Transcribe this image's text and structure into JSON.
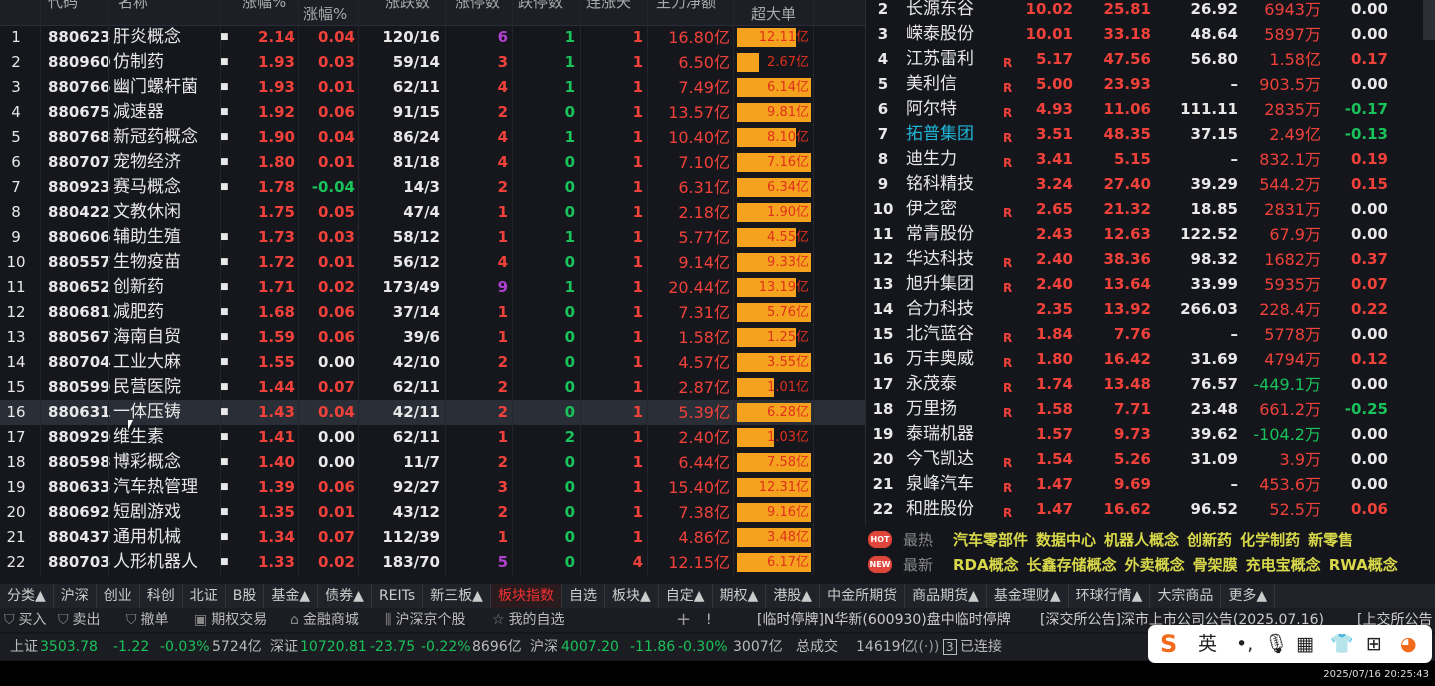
{
  "left_table": {
    "headers": {
      "code": "代码",
      "name": "名称",
      "change_top": "涨幅%",
      "change2": "涨幅%",
      "updown": "涨跌数",
      "limit_up": "涨停数",
      "limit_down": "跌停数",
      "streak": "连涨天",
      "main_net": "主力净额",
      "super_large": "超大单"
    },
    "rows": [
      {
        "i": "1",
        "code": "880623",
        "name": "肝炎概念",
        "dot": true,
        "chg": "2.14",
        "chg2": "0.04",
        "ud": "120/16",
        "lu": "6",
        "ld": "1",
        "st": "1",
        "net": "16.80亿",
        "sup": "12.11亿",
        "fill": 0.8
      },
      {
        "i": "2",
        "code": "880960",
        "name": "仿制药",
        "dot": true,
        "chg": "1.93",
        "chg2": "0.03",
        "ud": "59/14",
        "lu": "3",
        "ld": "1",
        "st": "1",
        "net": "6.50亿",
        "sup": "2.67亿",
        "fill": 0.3
      },
      {
        "i": "3",
        "code": "880766",
        "name": "幽门螺杆菌",
        "dot": true,
        "chg": "1.93",
        "chg2": "0.01",
        "ud": "62/11",
        "lu": "4",
        "ld": "1",
        "st": "1",
        "net": "7.49亿",
        "sup": "6.14亿",
        "fill": 1
      },
      {
        "i": "4",
        "code": "880675",
        "name": "减速器",
        "dot": true,
        "chg": "1.92",
        "chg2": "0.06",
        "ud": "91/15",
        "lu": "2",
        "ld": "0",
        "st": "1",
        "net": "13.57亿",
        "sup": "9.81亿",
        "fill": 1
      },
      {
        "i": "5",
        "code": "880768",
        "name": "新冠药概念",
        "dot": true,
        "chg": "1.90",
        "chg2": "0.04",
        "ud": "86/24",
        "lu": "4",
        "ld": "1",
        "st": "1",
        "net": "10.40亿",
        "sup": "8.10亿",
        "fill": 0.8
      },
      {
        "i": "6",
        "code": "880707",
        "name": "宠物经济",
        "dot": true,
        "chg": "1.80",
        "chg2": "0.01",
        "ud": "81/18",
        "lu": "4",
        "ld": "0",
        "st": "1",
        "net": "7.10亿",
        "sup": "7.16亿",
        "fill": 1
      },
      {
        "i": "7",
        "code": "880923",
        "name": "赛马概念",
        "dot": true,
        "chg": "1.78",
        "chg2": "-0.04",
        "ud": "14/3",
        "lu": "2",
        "ld": "0",
        "st": "1",
        "net": "6.31亿",
        "sup": "6.34亿",
        "fill": 1
      },
      {
        "i": "8",
        "code": "880422",
        "name": "文教休闲",
        "dot": false,
        "chg": "1.75",
        "chg2": "0.05",
        "ud": "47/4",
        "lu": "1",
        "ld": "0",
        "st": "1",
        "net": "2.18亿",
        "sup": "1.90亿",
        "fill": 1
      },
      {
        "i": "9",
        "code": "880606",
        "name": "辅助生殖",
        "dot": true,
        "chg": "1.73",
        "chg2": "0.03",
        "ud": "58/12",
        "lu": "1",
        "ld": "1",
        "st": "1",
        "net": "5.77亿",
        "sup": "4.55亿",
        "fill": 0.8
      },
      {
        "i": "10",
        "code": "880557",
        "name": "生物疫苗",
        "dot": true,
        "chg": "1.72",
        "chg2": "0.01",
        "ud": "56/12",
        "lu": "4",
        "ld": "0",
        "st": "1",
        "net": "9.14亿",
        "sup": "9.33亿",
        "fill": 1
      },
      {
        "i": "11",
        "code": "880652",
        "name": "创新药",
        "dot": true,
        "chg": "1.71",
        "chg2": "0.02",
        "ud": "173/49",
        "lu": "9",
        "ld": "1",
        "st": "1",
        "net": "20.44亿",
        "sup": "13.19亿",
        "fill": 0.8
      },
      {
        "i": "12",
        "code": "880681",
        "name": "减肥药",
        "dot": true,
        "chg": "1.68",
        "chg2": "0.06",
        "ud": "37/14",
        "lu": "1",
        "ld": "0",
        "st": "1",
        "net": "7.31亿",
        "sup": "5.76亿",
        "fill": 1
      },
      {
        "i": "13",
        "code": "880567",
        "name": "海南自贸",
        "dot": true,
        "chg": "1.59",
        "chg2": "0.06",
        "ud": "39/6",
        "lu": "1",
        "ld": "0",
        "st": "1",
        "net": "1.58亿",
        "sup": "1.25亿",
        "fill": 0.8
      },
      {
        "i": "14",
        "code": "880704",
        "name": "工业大麻",
        "dot": true,
        "chg": "1.55",
        "chg2": "0.00",
        "ud": "42/10",
        "lu": "2",
        "ld": "0",
        "st": "1",
        "net": "4.57亿",
        "sup": "3.55亿",
        "fill": 1
      },
      {
        "i": "15",
        "code": "880599",
        "name": "民营医院",
        "dot": true,
        "chg": "1.44",
        "chg2": "0.07",
        "ud": "62/11",
        "lu": "2",
        "ld": "0",
        "st": "1",
        "net": "2.87亿",
        "sup": "1.01亿",
        "fill": 0.5
      },
      {
        "i": "16",
        "code": "880631",
        "name": "一体压铸",
        "dot": true,
        "chg": "1.43",
        "chg2": "0.04",
        "ud": "42/11",
        "lu": "2",
        "ld": "0",
        "st": "1",
        "net": "5.39亿",
        "sup": "6.28亿",
        "fill": 1,
        "selected": true
      },
      {
        "i": "17",
        "code": "880929",
        "name": "维生素",
        "dot": true,
        "chg": "1.41",
        "chg2": "0.00",
        "ud": "62/11",
        "lu": "1",
        "ld": "2",
        "st": "1",
        "net": "2.40亿",
        "sup": "1.03亿",
        "fill": 0.5
      },
      {
        "i": "18",
        "code": "880598",
        "name": "博彩概念",
        "dot": true,
        "chg": "1.40",
        "chg2": "0.00",
        "ud": "11/7",
        "lu": "2",
        "ld": "0",
        "st": "1",
        "net": "6.44亿",
        "sup": "7.58亿",
        "fill": 1
      },
      {
        "i": "19",
        "code": "880633",
        "name": "汽车热管理",
        "dot": true,
        "chg": "1.39",
        "chg2": "0.06",
        "ud": "92/27",
        "lu": "3",
        "ld": "0",
        "st": "1",
        "net": "15.40亿",
        "sup": "12.31亿",
        "fill": 1
      },
      {
        "i": "20",
        "code": "880692",
        "name": "短剧游戏",
        "dot": true,
        "chg": "1.35",
        "chg2": "0.01",
        "ud": "43/12",
        "lu": "2",
        "ld": "0",
        "st": "1",
        "net": "7.38亿",
        "sup": "9.16亿",
        "fill": 1
      },
      {
        "i": "21",
        "code": "880437",
        "name": "通用机械",
        "dot": true,
        "chg": "1.34",
        "chg2": "0.07",
        "ud": "112/39",
        "lu": "1",
        "ld": "0",
        "st": "1",
        "net": "4.86亿",
        "sup": "3.48亿",
        "fill": 1
      },
      {
        "i": "22",
        "code": "880703",
        "name": "人形机器人",
        "dot": true,
        "chg": "1.33",
        "chg2": "0.02",
        "ud": "183/70",
        "lu": "5",
        "ld": "0",
        "st": "4",
        "net": "12.15亿",
        "sup": "6.17亿",
        "fill": 1
      }
    ]
  },
  "right_table": {
    "rows": [
      {
        "i": "2",
        "name": "长源东谷",
        "r": false,
        "a": "10.02",
        "b": "25.81",
        "c": "26.92",
        "d": "6943万",
        "e": "0.00"
      },
      {
        "i": "3",
        "name": "嵘泰股份",
        "r": false,
        "a": "10.01",
        "b": "33.18",
        "c": "48.64",
        "d": "5897万",
        "e": "0.00"
      },
      {
        "i": "4",
        "name": "江苏雷利",
        "r": true,
        "a": "5.17",
        "b": "47.56",
        "c": "56.80",
        "d": "1.58亿",
        "e": "0.17"
      },
      {
        "i": "5",
        "name": "美利信",
        "r": true,
        "a": "5.00",
        "b": "23.93",
        "c": "–",
        "d": "903.5万",
        "e": "0.00"
      },
      {
        "i": "6",
        "name": "阿尔特",
        "r": true,
        "a": "4.93",
        "b": "11.06",
        "c": "111.11",
        "d": "2835万",
        "e": "-0.17"
      },
      {
        "i": "7",
        "name": "拓普集团",
        "r": true,
        "a": "3.51",
        "b": "48.35",
        "c": "37.15",
        "d": "2.49亿",
        "e": "-0.13",
        "highlight": true
      },
      {
        "i": "8",
        "name": "迪生力",
        "r": true,
        "a": "3.41",
        "b": "5.15",
        "c": "–",
        "d": "832.1万",
        "e": "0.19"
      },
      {
        "i": "9",
        "name": "铭科精技",
        "r": false,
        "a": "3.24",
        "b": "27.40",
        "c": "39.29",
        "d": "544.2万",
        "e": "0.15"
      },
      {
        "i": "10",
        "name": "伊之密",
        "r": true,
        "a": "2.65",
        "b": "21.32",
        "c": "18.85",
        "d": "2831万",
        "e": "0.00"
      },
      {
        "i": "11",
        "name": "常青股份",
        "r": false,
        "a": "2.43",
        "b": "12.63",
        "c": "122.52",
        "d": "67.9万",
        "e": "0.00"
      },
      {
        "i": "12",
        "name": "华达科技",
        "r": true,
        "a": "2.40",
        "b": "38.36",
        "c": "98.32",
        "d": "1682万",
        "e": "0.37"
      },
      {
        "i": "13",
        "name": "旭升集团",
        "r": true,
        "a": "2.40",
        "b": "13.64",
        "c": "33.99",
        "d": "5935万",
        "e": "0.07"
      },
      {
        "i": "14",
        "name": "合力科技",
        "r": false,
        "a": "2.35",
        "b": "13.92",
        "c": "266.03",
        "d": "228.4万",
        "e": "0.22"
      },
      {
        "i": "15",
        "name": "北汽蓝谷",
        "r": true,
        "a": "1.84",
        "b": "7.76",
        "c": "–",
        "d": "5778万",
        "e": "0.00"
      },
      {
        "i": "16",
        "name": "万丰奥威",
        "r": true,
        "a": "1.80",
        "b": "16.42",
        "c": "31.69",
        "d": "4794万",
        "e": "0.12"
      },
      {
        "i": "17",
        "name": "永茂泰",
        "r": true,
        "a": "1.74",
        "b": "13.48",
        "c": "76.57",
        "d": "-449.1万",
        "e": "0.00"
      },
      {
        "i": "18",
        "name": "万里扬",
        "r": true,
        "a": "1.58",
        "b": "7.71",
        "c": "23.48",
        "d": "661.2万",
        "e": "-0.25"
      },
      {
        "i": "19",
        "name": "泰瑞机器",
        "r": false,
        "a": "1.57",
        "b": "9.73",
        "c": "39.62",
        "d": "-104.2万",
        "e": "0.00"
      },
      {
        "i": "20",
        "name": "今飞凯达",
        "r": true,
        "a": "1.54",
        "b": "5.26",
        "c": "31.09",
        "d": "3.9万",
        "e": "0.00"
      },
      {
        "i": "21",
        "name": "泉峰汽车",
        "r": true,
        "a": "1.47",
        "b": "9.69",
        "c": "–",
        "d": "453.6万",
        "e": "0.00"
      },
      {
        "i": "22",
        "name": "和胜股份",
        "r": true,
        "a": "1.47",
        "b": "16.62",
        "c": "96.52",
        "d": "52.5万",
        "e": "0.06"
      }
    ],
    "r_label": "R"
  },
  "hot": {
    "badge": "HOT",
    "label": "最热",
    "items": [
      "汽车零部件",
      "数据中心",
      "机器人概念",
      "创新药",
      "化学制药",
      "新零售"
    ]
  },
  "new": {
    "badge": "NEW",
    "label": "最新",
    "items": [
      "RDA概念",
      "长鑫存储概念",
      "外卖概念",
      "骨架膜",
      "充电宝概念",
      "RWA概念"
    ]
  },
  "tabs": [
    "分类▲",
    "沪深",
    "创业",
    "科创",
    "北证",
    "B股",
    "基金▲",
    "债券▲",
    "REITs",
    "新三板▲",
    "板块指数",
    "自选",
    "板块▲",
    "自定▲",
    "期权▲",
    "港股▲",
    "中金所期货",
    "商品期货▲",
    "基金理财▲",
    "环球行情▲",
    "大宗商品",
    "更多▲"
  ],
  "active_tab": "板块指数",
  "toolbar": {
    "buy": "买入",
    "sell": "卖出",
    "cancel": "撤单",
    "options": "期权交易",
    "mall": "金融商城",
    "stocks": "沪深京个股",
    "watchlist": "我的自选",
    "plus": "+",
    "bang": "!",
    "news1": "[临时停牌]N华新(600930)盘中临时停牌",
    "news2": "[深交所公告]深市上市公司公告(2025.07.16)",
    "news3": "[上交所公告"
  },
  "indices": {
    "sh_label": "上证",
    "sh": "3503.78",
    "sh_chg": "-1.22",
    "sh_pct": "-0.03%",
    "sh_vol": "5724亿",
    "sz_label": "深证",
    "sz": "10720.81",
    "sz_chg": "-23.75",
    "sz_pct": "-0.22%",
    "sz_vol": "8696亿",
    "hs_label": "沪深",
    "hs": "4007.20",
    "hs_chg": "-11.86",
    "hs_pct": "-0.30%",
    "hs_vol": "3007亿",
    "total_label": "总成交",
    "total": "14619亿",
    "conn_num": "3",
    "conn": "已连接"
  },
  "ime": {
    "logo": "S",
    "lang": "英"
  },
  "timestamp": "2025/07/16 20:25:43",
  "colors": {
    "up": "#f0413a",
    "down": "#19c25a",
    "bar": "#f5a31f",
    "background": "#14161b"
  }
}
